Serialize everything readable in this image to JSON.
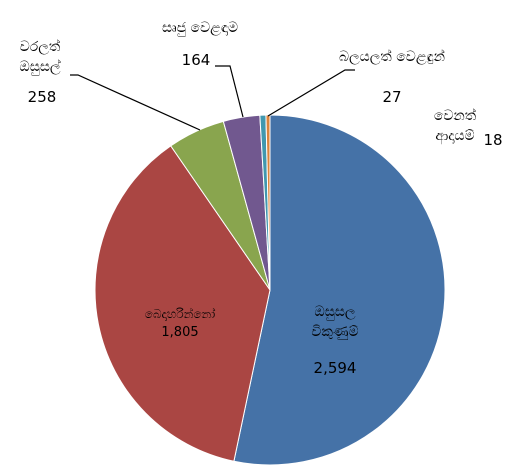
{
  "chart_data": {
    "type": "pie",
    "categories": [
      "ඔසුසල විකුණුම්",
      "බෙදාහරින්නෝ",
      "වරලත් ඔසුසල්",
      "සෘජු වෙළඳාම",
      "බලයලත් වෙළඳුන්",
      "වෙනත් ආදායම්"
    ],
    "values": [
      2594,
      1805,
      258,
      164,
      27,
      18
    ],
    "value_labels": [
      "2,594",
      "1,805",
      "258",
      "164",
      "27",
      "18"
    ],
    "colors": [
      "#4572a7",
      "#aa4643",
      "#89a54e",
      "#71588f",
      "#4198af",
      "#db843d"
    ]
  }
}
